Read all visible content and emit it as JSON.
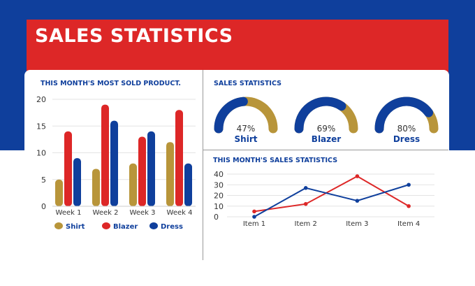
{
  "header": {
    "title": "SALES STATISTICS"
  },
  "colors": {
    "shirt": "#b8953a",
    "blazer": "#dd2727",
    "dress": "#0f3f9c",
    "background": "#0f3f9c"
  },
  "chart_data": [
    {
      "type": "bar",
      "title": "THIS MONTH'S MOST SOLD PRODUCT.",
      "categories": [
        "Week 1",
        "Week 2",
        "Week 3",
        "Week 4"
      ],
      "series": [
        {
          "name": "Shirt",
          "values": [
            5,
            7,
            8,
            12
          ]
        },
        {
          "name": "Blazer",
          "values": [
            14,
            19,
            13,
            18
          ]
        },
        {
          "name": "Dress",
          "values": [
            9,
            16,
            14,
            8
          ]
        }
      ],
      "ylim": [
        0,
        20
      ],
      "yticks": [
        "0",
        "5",
        "10",
        "15",
        "20"
      ],
      "grid": true,
      "legend": "bottom"
    },
    {
      "type": "gauge",
      "title": "SALES STATISTICS",
      "items": [
        {
          "label": "Shirt",
          "value": 47,
          "text": "47%"
        },
        {
          "label": "Blazer",
          "value": 69,
          "text": "69%"
        },
        {
          "label": "Dress",
          "value": 80,
          "text": "80%"
        }
      ]
    },
    {
      "type": "line",
      "title": "THIS MONTH'S SALES STATISTICS",
      "categories": [
        "Item 1",
        "Item 2",
        "Item 3",
        "Item 4"
      ],
      "series": [
        {
          "color": "#dd2727",
          "values": [
            5,
            12,
            38,
            10
          ]
        },
        {
          "color": "#0f3f9c",
          "values": [
            0,
            27,
            15,
            30
          ]
        }
      ],
      "ylim": [
        0,
        40
      ],
      "yticks": [
        "0",
        "10",
        "20",
        "30",
        "40"
      ],
      "grid": true
    }
  ]
}
